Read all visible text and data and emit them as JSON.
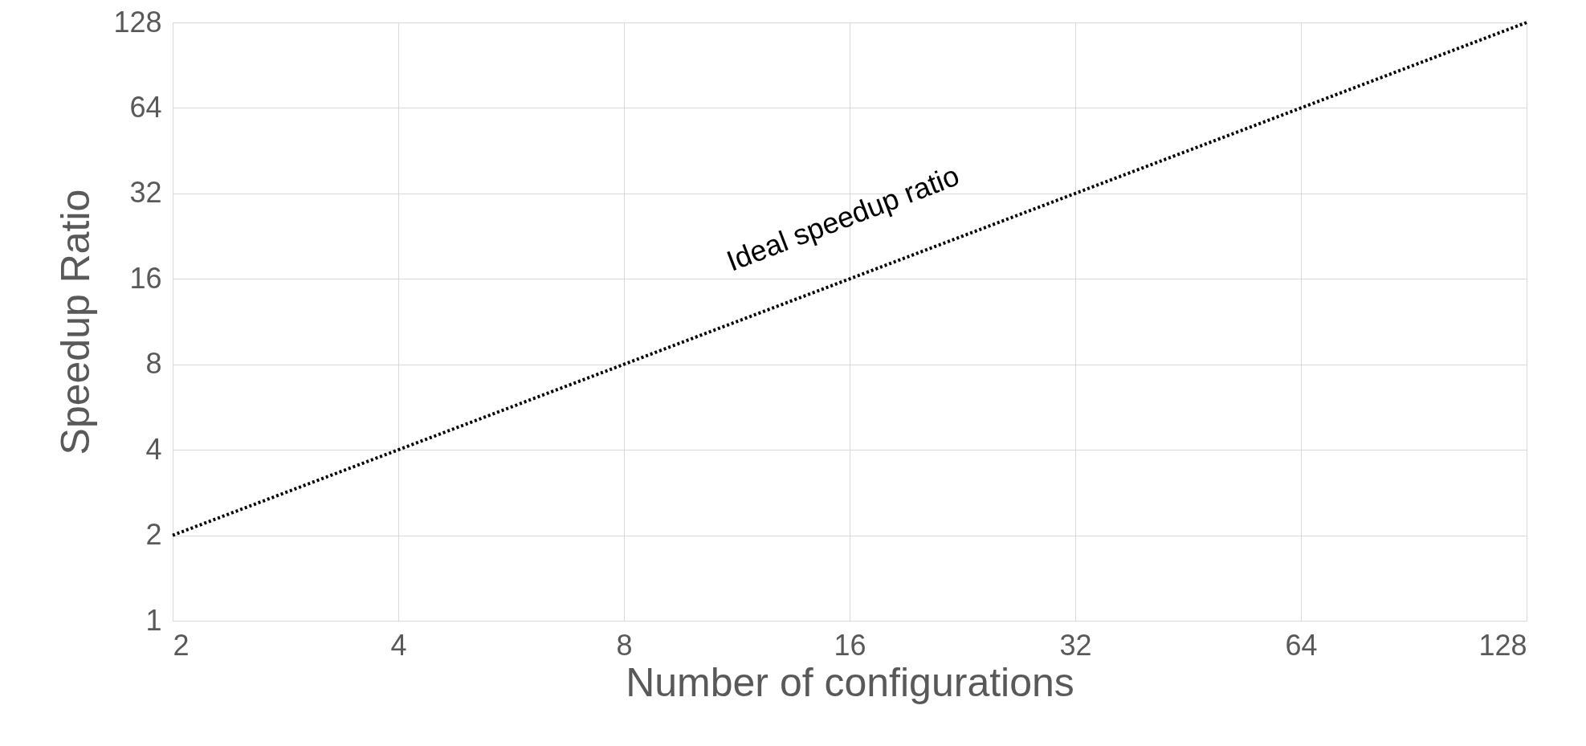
{
  "chart_data": {
    "type": "line",
    "xlabel": "Number of configurations",
    "ylabel": "Speedup Ratio",
    "x": [
      2,
      4,
      8,
      16,
      32,
      64,
      128
    ],
    "series": [
      {
        "color": "#000000",
        "values": [
          2,
          4,
          8,
          16,
          32,
          64,
          128
        ]
      }
    ],
    "log": "xy",
    "xlim": [
      2,
      128
    ],
    "ylim": [
      1,
      128
    ],
    "xticks": [
      2,
      4,
      8,
      16,
      32,
      64,
      128
    ],
    "yticks": [
      1,
      2,
      4,
      8,
      16,
      32,
      64,
      128
    ],
    "grid": true,
    "marker": "none",
    "line_style": "dotted",
    "annotations": [
      "Ideal speedup ratio"
    ]
  }
}
